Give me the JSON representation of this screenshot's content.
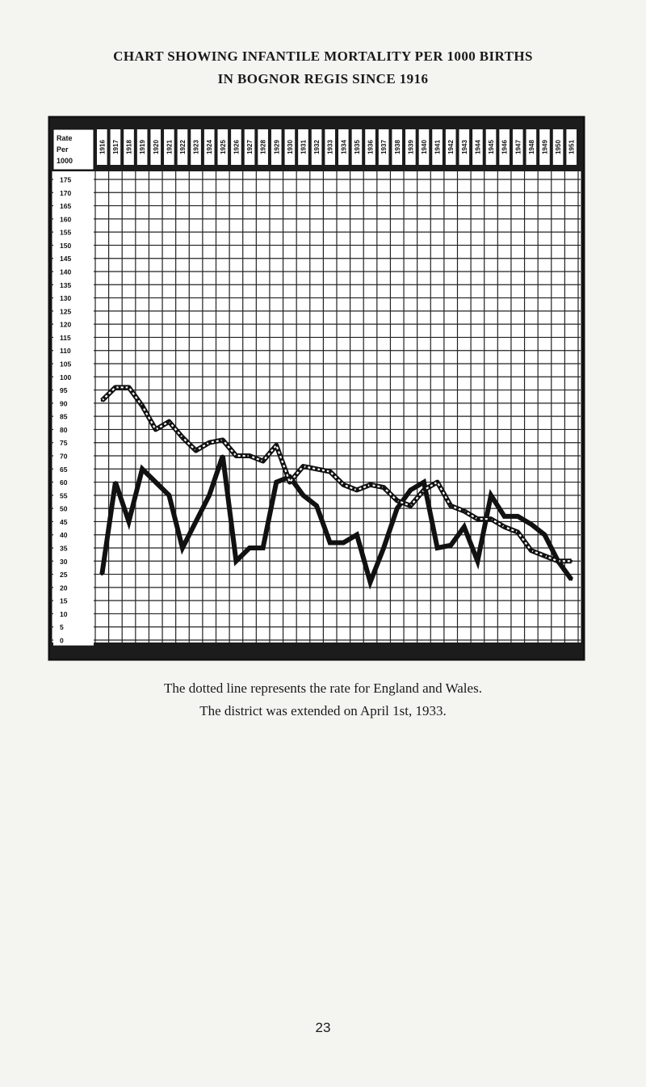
{
  "page": {
    "title_line1": "CHART SHOWING INFANTILE MORTALITY PER 1000 BIRTHS",
    "title_line2": "IN BOGNOR REGIS SINCE 1916",
    "note1": "The dotted line represents the rate for England and Wales.",
    "note2": "The district was extended on April 1st, 1933.",
    "page_number": "23"
  },
  "chart_data": {
    "type": "line",
    "corner_label": [
      "Rate",
      "Per",
      "1000"
    ],
    "x": [
      "1916",
      "1917",
      "1918",
      "1919",
      "1920",
      "1921",
      "1922",
      "1923",
      "1924",
      "1925",
      "1926",
      "1927",
      "1928",
      "1929",
      "1930",
      "1931",
      "1932",
      "1933",
      "1934",
      "1935",
      "1936",
      "1937",
      "1938",
      "1939",
      "1940",
      "1941",
      "1942",
      "1943",
      "1944",
      "1945",
      "1946",
      "1947",
      "1948",
      "1949",
      "1950",
      "1951"
    ],
    "y_ticks": [
      0,
      5,
      10,
      15,
      20,
      25,
      30,
      35,
      40,
      45,
      50,
      55,
      60,
      65,
      70,
      75,
      80,
      85,
      90,
      95,
      100,
      105,
      110,
      115,
      120,
      125,
      130,
      135,
      140,
      145,
      150,
      155,
      160,
      165,
      170,
      175
    ],
    "ylim": [
      0,
      175
    ],
    "grid": true,
    "series": [
      {
        "values": [
          25,
          60,
          45,
          65,
          60,
          55,
          35,
          45,
          55,
          70,
          30,
          35,
          35,
          60,
          62,
          55,
          51,
          37,
          37,
          40,
          22,
          35,
          50,
          57,
          60,
          35,
          36,
          43,
          30,
          55,
          47,
          47,
          44,
          40,
          30,
          23
        ],
        "color": "#111111",
        "style": "solid"
      },
      {
        "values": [
          91,
          96,
          96,
          89,
          80,
          83,
          77,
          72,
          75,
          76,
          70,
          70,
          68,
          74,
          60,
          66,
          65,
          64,
          59,
          57,
          59,
          58,
          53,
          51,
          57,
          60,
          51,
          49,
          46,
          46,
          43,
          41,
          34,
          32,
          30,
          30
        ],
        "color": "#111111",
        "style": "dotted"
      }
    ]
  }
}
